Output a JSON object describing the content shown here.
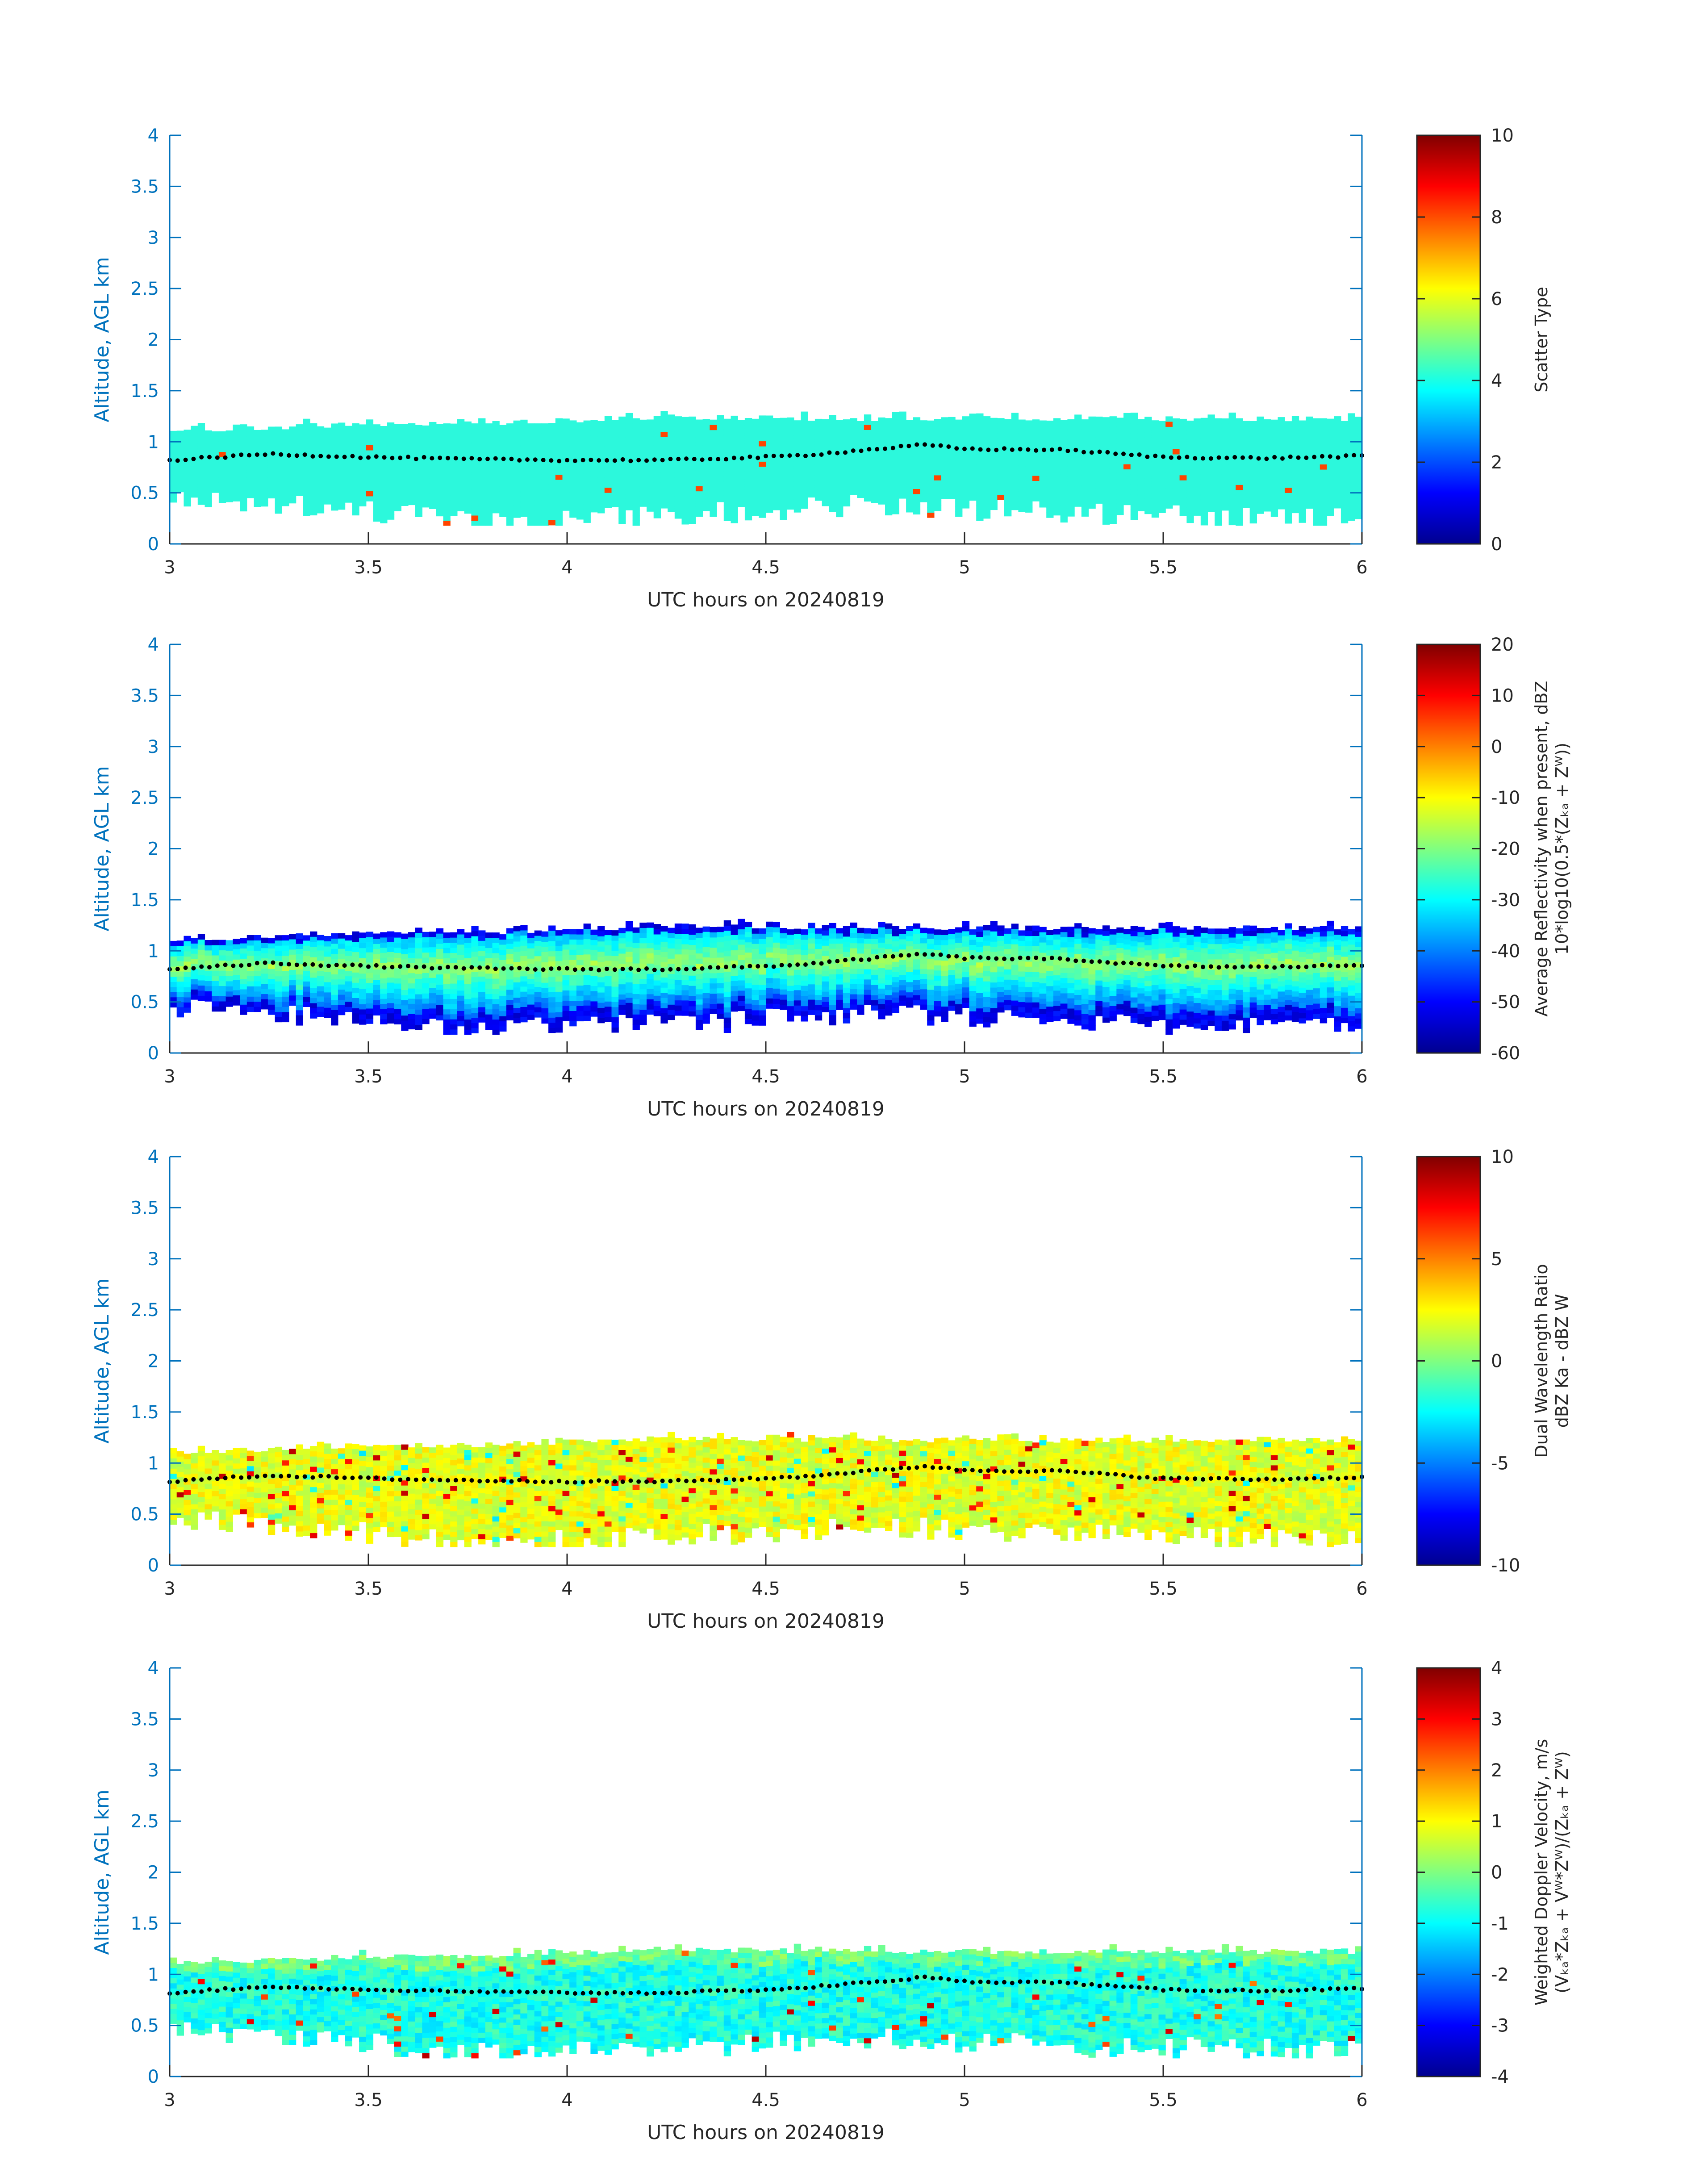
{
  "figure": {
    "date": "20240819"
  },
  "common": {
    "ylabel": "Altitude, AGL km",
    "xlabel": "UTC hours on 20240819",
    "xticks": [
      "3",
      "3.5",
      "4",
      "4.5",
      "5",
      "5.5",
      "6"
    ],
    "yticks": [
      "0",
      "0.5",
      "1",
      "1.5",
      "2",
      "2.5",
      "3",
      "3.5",
      "4"
    ]
  },
  "colors": {
    "axis": "#0072BD",
    "text": "#262626",
    "jet": [
      "#00008F",
      "#0000FF",
      "#0080FF",
      "#00FFFF",
      "#80FF80",
      "#FFFF00",
      "#FF8000",
      "#FF0000",
      "#800000"
    ]
  },
  "chart_data": [
    {
      "type": "heatmap",
      "title": "",
      "xlabel": "UTC hours on 20240819",
      "ylabel": "Altitude, AGL km",
      "xlim": [
        3,
        6
      ],
      "ylim": [
        0,
        4
      ],
      "colorbar": {
        "label_lines": [
          "Scatter Type"
        ],
        "range": [
          0,
          10
        ],
        "ticks": [
          "0",
          "2",
          "4",
          "6",
          "8",
          "10"
        ]
      },
      "field": {
        "description": "Scatter Type",
        "dominant_value": 3.8,
        "layer_top_km": [
          1.08,
          1.15,
          1.15,
          1.22,
          1.2,
          1.2,
          1.2
        ],
        "layer_bottom_km": [
          0.45,
          0.32,
          0.22,
          0.28,
          0.38,
          0.3,
          0.25
        ]
      },
      "cloud_base_dots": {
        "x": [
          3.0,
          3.25,
          3.5,
          3.75,
          4.0,
          4.25,
          4.5,
          4.6,
          4.75,
          4.9,
          5.0,
          5.25,
          5.5,
          5.75,
          6.0
        ],
        "y": [
          0.82,
          0.88,
          0.85,
          0.83,
          0.82,
          0.82,
          0.85,
          0.87,
          0.92,
          0.97,
          0.93,
          0.92,
          0.85,
          0.84,
          0.86
        ]
      }
    },
    {
      "type": "heatmap",
      "title": "",
      "xlabel": "UTC hours on 20240819",
      "ylabel": "Altitude, AGL km",
      "xlim": [
        3,
        6
      ],
      "ylim": [
        0,
        4
      ],
      "colorbar": {
        "label_lines": [
          "Average Reflectivity when present, dBZ",
          "10*log10(0.5*(Zₖₐ + Zᵂ))"
        ],
        "range": [
          -60,
          20
        ],
        "ticks": [
          "-60",
          "-50",
          "-40",
          "-30",
          "-20",
          "-10",
          "0",
          "10",
          "20"
        ]
      },
      "field": {
        "description": "Average Reflectivity",
        "peak_dbz": -22,
        "edge_dbz": -55
      },
      "cloud_base_dots": {
        "x": [
          3.0,
          3.25,
          3.5,
          3.75,
          4.0,
          4.25,
          4.5,
          4.6,
          4.75,
          4.9,
          5.0,
          5.25,
          5.5,
          5.75,
          6.0
        ],
        "y": [
          0.82,
          0.88,
          0.85,
          0.83,
          0.82,
          0.82,
          0.85,
          0.87,
          0.92,
          0.97,
          0.93,
          0.92,
          0.85,
          0.84,
          0.86
        ]
      }
    },
    {
      "type": "heatmap",
      "title": "",
      "xlabel": "UTC hours on 20240819",
      "ylabel": "Altitude, AGL km",
      "xlim": [
        3,
        6
      ],
      "ylim": [
        0,
        4
      ],
      "colorbar": {
        "label_lines": [
          "Dual Wavelength Ratio",
          "dBZ Ka - dBZ W"
        ],
        "range": [
          -10,
          10
        ],
        "ticks": [
          "-10",
          "-5",
          "0",
          "5",
          "10"
        ]
      },
      "field": {
        "description": "Dual Wavelength Ratio",
        "typical_db": 2
      },
      "cloud_base_dots": {
        "x": [
          3.0,
          3.25,
          3.5,
          3.75,
          4.0,
          4.25,
          4.5,
          4.6,
          4.75,
          4.9,
          5.0,
          5.25,
          5.5,
          5.75,
          6.0
        ],
        "y": [
          0.82,
          0.88,
          0.85,
          0.83,
          0.82,
          0.82,
          0.85,
          0.87,
          0.92,
          0.97,
          0.93,
          0.92,
          0.85,
          0.84,
          0.86
        ]
      }
    },
    {
      "type": "heatmap",
      "title": "",
      "xlabel": "UTC hours on 20240819",
      "ylabel": "Altitude, AGL km",
      "xlim": [
        3,
        6
      ],
      "ylim": [
        0,
        4
      ],
      "colorbar": {
        "label_lines": [
          "Weighted Doppler Velocity, m/s",
          "(Vₖₐ*Zₖₐ + Vᵂ*Zᵂ)/(Zₖₐ + Zᵂ)"
        ],
        "range": [
          -4,
          4
        ],
        "ticks": [
          "-4",
          "-3",
          "-2",
          "-1",
          "0",
          "1",
          "2",
          "3",
          "4"
        ]
      },
      "field": {
        "description": "Weighted Doppler Velocity",
        "typical_ms": -1
      },
      "cloud_base_dots": {
        "x": [
          3.0,
          3.25,
          3.5,
          3.75,
          4.0,
          4.25,
          4.5,
          4.6,
          4.75,
          4.9,
          5.0,
          5.25,
          5.5,
          5.75,
          6.0
        ],
        "y": [
          0.82,
          0.88,
          0.85,
          0.83,
          0.82,
          0.82,
          0.85,
          0.87,
          0.92,
          0.97,
          0.93,
          0.92,
          0.85,
          0.84,
          0.86
        ]
      }
    }
  ]
}
